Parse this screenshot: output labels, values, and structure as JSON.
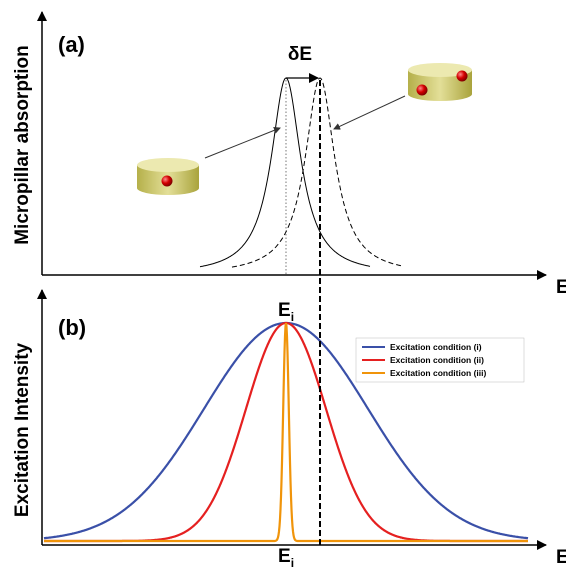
{
  "panel_a": {
    "label": "(a)",
    "y_axis_label": "Micropillar absorption",
    "x_axis_label": "E",
    "shift_label": "δE"
  },
  "panel_b": {
    "label": "(b)",
    "y_axis_label": "Excitation Intensity",
    "x_axis_label": "E",
    "peak_label": {
      "base": "E",
      "sub": "i"
    },
    "axis_mark_label": {
      "base": "E",
      "sub": "i"
    },
    "legend": [
      "Excitation condition (i)",
      "Excitation condition (ii)",
      "Excitation condition (iii)"
    ]
  }
}
